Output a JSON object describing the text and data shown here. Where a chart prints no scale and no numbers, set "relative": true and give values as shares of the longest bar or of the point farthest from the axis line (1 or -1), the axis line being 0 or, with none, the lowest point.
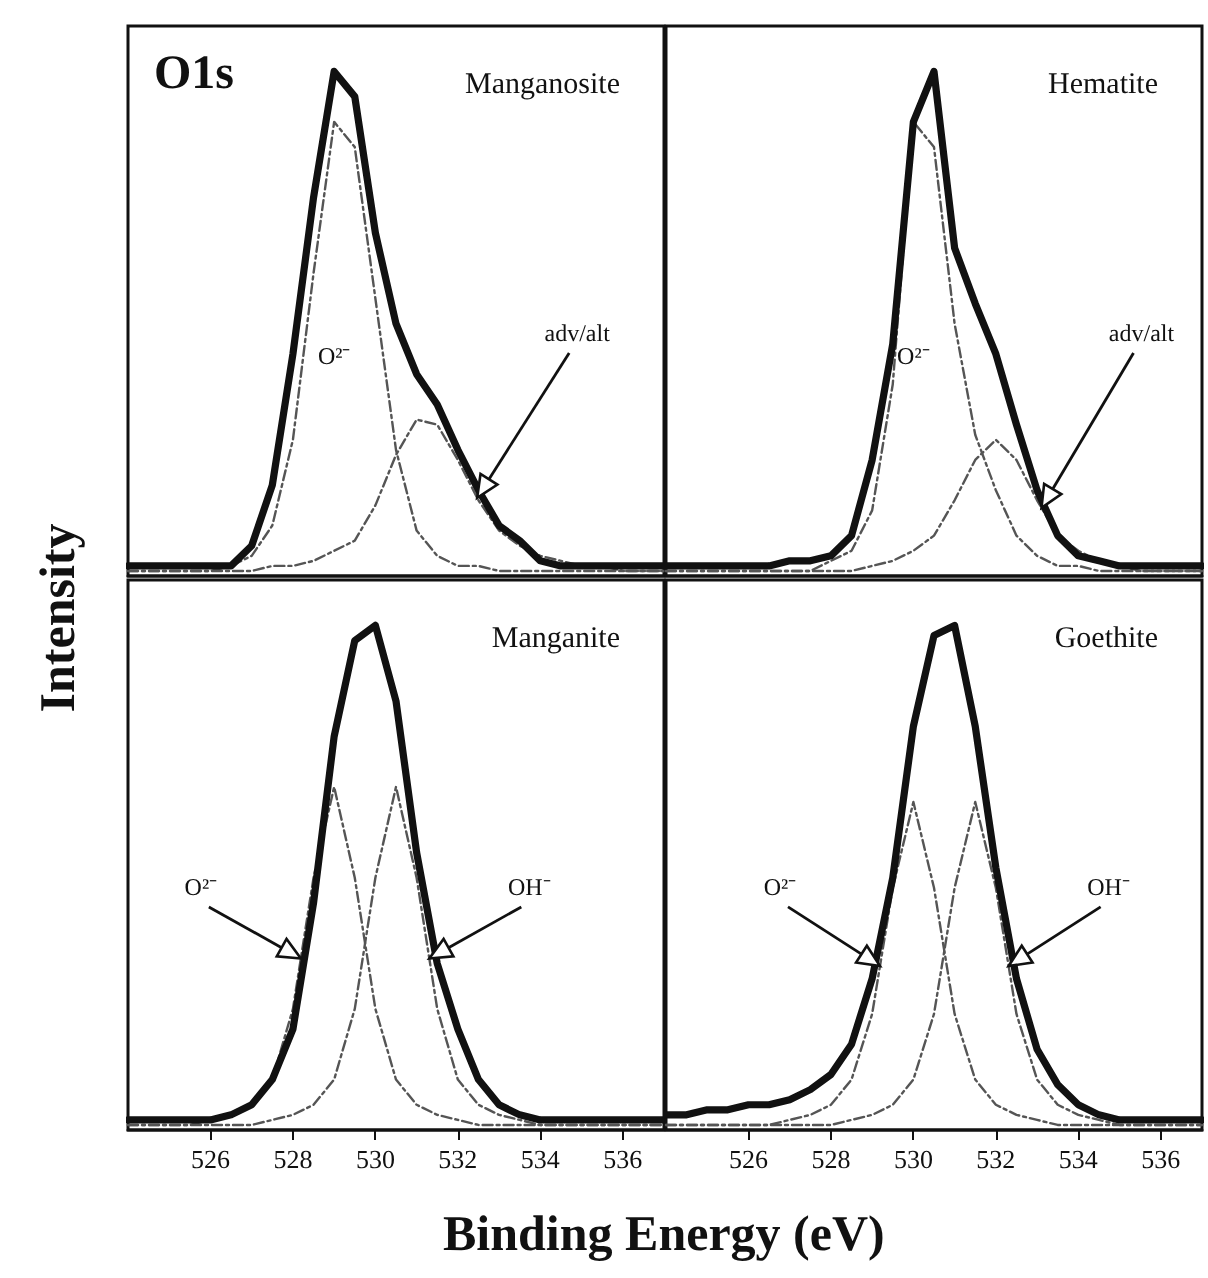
{
  "chart_data": [
    {
      "type": "line",
      "title": "Manganosite",
      "relative": true,
      "tick_labels": false,
      "x": [
        524,
        524.5,
        525,
        525.5,
        526,
        526.5,
        527,
        527.5,
        528,
        528.5,
        529,
        529.5,
        530,
        530.5,
        531,
        531.5,
        532,
        532.5,
        533,
        533.5,
        534,
        534.5,
        535,
        535.5,
        536,
        536.5,
        537
      ],
      "xlim": [
        524,
        537
      ],
      "xticks": [
        526,
        528,
        530,
        532,
        534,
        536
      ],
      "series": [
        {
          "color": "#111111",
          "line_style": "solid",
          "values": [
            0.02,
            0.02,
            0.02,
            0.02,
            0.02,
            0.02,
            0.06,
            0.18,
            0.44,
            0.75,
            1.0,
            0.95,
            0.68,
            0.5,
            0.4,
            0.34,
            0.25,
            0.17,
            0.1,
            0.07,
            0.03,
            0.02,
            0.02,
            0.02,
            0.02,
            0.02,
            0.02
          ]
        },
        {
          "color": "#555555",
          "line_style": "dashed",
          "values": [
            0.01,
            0.01,
            0.01,
            0.01,
            0.01,
            0.02,
            0.04,
            0.1,
            0.27,
            0.6,
            0.9,
            0.85,
            0.55,
            0.25,
            0.09,
            0.04,
            0.02,
            0.02,
            0.01,
            0.01,
            0.01,
            0.01,
            0.01,
            0.01,
            0.01,
            0.01,
            0.01
          ]
        },
        {
          "color": "#555555",
          "line_style": "dashed",
          "values": [
            0.01,
            0.01,
            0.01,
            0.01,
            0.01,
            0.01,
            0.01,
            0.02,
            0.02,
            0.03,
            0.05,
            0.07,
            0.14,
            0.24,
            0.31,
            0.3,
            0.23,
            0.15,
            0.09,
            0.06,
            0.04,
            0.03,
            0.02,
            0.02,
            0.01,
            0.01,
            0.01
          ]
        }
      ],
      "annotations": [
        "O1s",
        "O²⁻",
        "adv/alt"
      ]
    },
    {
      "type": "line",
      "title": "Hematite",
      "relative": true,
      "tick_labels": false,
      "x": [
        524,
        524.5,
        525,
        525.5,
        526,
        526.5,
        527,
        527.5,
        528,
        528.5,
        529,
        529.5,
        530,
        530.5,
        531,
        531.5,
        532,
        532.5,
        533,
        533.5,
        534,
        534.5,
        535,
        535.5,
        536,
        536.5,
        537
      ],
      "xlim": [
        524,
        537
      ],
      "xticks": [
        526,
        528,
        530,
        532,
        534,
        536
      ],
      "series": [
        {
          "color": "#111111",
          "line_style": "solid",
          "values": [
            0.02,
            0.02,
            0.02,
            0.02,
            0.02,
            0.02,
            0.03,
            0.03,
            0.04,
            0.08,
            0.23,
            0.46,
            0.9,
            1.0,
            0.65,
            0.54,
            0.44,
            0.3,
            0.17,
            0.08,
            0.04,
            0.03,
            0.02,
            0.02,
            0.02,
            0.02,
            0.02
          ]
        },
        {
          "color": "#555555",
          "line_style": "dashed",
          "values": [
            0.01,
            0.01,
            0.01,
            0.01,
            0.01,
            0.01,
            0.01,
            0.01,
            0.03,
            0.05,
            0.13,
            0.38,
            0.9,
            0.85,
            0.5,
            0.28,
            0.17,
            0.08,
            0.04,
            0.02,
            0.02,
            0.01,
            0.01,
            0.01,
            0.01,
            0.01,
            0.01
          ]
        },
        {
          "color": "#555555",
          "line_style": "dashed",
          "values": [
            0.01,
            0.01,
            0.01,
            0.01,
            0.01,
            0.01,
            0.01,
            0.01,
            0.01,
            0.01,
            0.02,
            0.03,
            0.05,
            0.08,
            0.15,
            0.23,
            0.27,
            0.23,
            0.15,
            0.08,
            0.05,
            0.03,
            0.02,
            0.01,
            0.01,
            0.01,
            0.01
          ]
        }
      ],
      "annotations": [
        "O²⁻",
        "adv/alt"
      ]
    },
    {
      "type": "line",
      "title": "Manganite",
      "relative": true,
      "tick_labels": "x",
      "xlabel": "Binding Energy (eV)",
      "ylabel": "Intensity",
      "x": [
        524,
        524.5,
        525,
        525.5,
        526,
        526.5,
        527,
        527.5,
        528,
        528.5,
        529,
        529.5,
        530,
        530.5,
        531,
        531.5,
        532,
        532.5,
        533,
        533.5,
        534,
        534.5,
        535,
        535.5,
        536,
        536.5,
        537
      ],
      "xlim": [
        524,
        537
      ],
      "xticks": [
        526,
        528,
        530,
        532,
        534,
        536
      ],
      "series": [
        {
          "color": "#111111",
          "line_style": "solid",
          "values": [
            0.02,
            0.02,
            0.02,
            0.02,
            0.02,
            0.03,
            0.05,
            0.1,
            0.2,
            0.45,
            0.78,
            0.97,
            1.0,
            0.85,
            0.55,
            0.33,
            0.2,
            0.1,
            0.05,
            0.03,
            0.02,
            0.02,
            0.02,
            0.02,
            0.02,
            0.02,
            0.02
          ]
        },
        {
          "color": "#555555",
          "line_style": "dashed",
          "values": [
            0.01,
            0.01,
            0.01,
            0.01,
            0.02,
            0.03,
            0.05,
            0.1,
            0.24,
            0.5,
            0.68,
            0.5,
            0.24,
            0.1,
            0.05,
            0.03,
            0.02,
            0.01,
            0.01,
            0.01,
            0.01,
            0.01,
            0.01,
            0.01,
            0.01,
            0.01,
            0.01
          ]
        },
        {
          "color": "#555555",
          "line_style": "dashed",
          "values": [
            0.01,
            0.01,
            0.01,
            0.01,
            0.01,
            0.01,
            0.01,
            0.02,
            0.03,
            0.05,
            0.1,
            0.24,
            0.5,
            0.68,
            0.5,
            0.24,
            0.1,
            0.05,
            0.03,
            0.02,
            0.01,
            0.01,
            0.01,
            0.01,
            0.01,
            0.01,
            0.01
          ]
        }
      ],
      "annotations": [
        "O²⁻",
        "OH⁻"
      ]
    },
    {
      "type": "line",
      "title": "Goethite",
      "relative": true,
      "tick_labels": "x",
      "x": [
        524,
        524.5,
        525,
        525.5,
        526,
        526.5,
        527,
        527.5,
        528,
        528.5,
        529,
        529.5,
        530,
        530.5,
        531,
        531.5,
        532,
        532.5,
        533,
        533.5,
        534,
        534.5,
        535,
        535.5,
        536,
        536.5,
        537
      ],
      "xlim": [
        524,
        537
      ],
      "xticks": [
        526,
        528,
        530,
        532,
        534,
        536
      ],
      "series": [
        {
          "color": "#111111",
          "line_style": "solid",
          "values": [
            0.03,
            0.03,
            0.04,
            0.04,
            0.05,
            0.05,
            0.06,
            0.08,
            0.11,
            0.17,
            0.3,
            0.5,
            0.8,
            0.98,
            1.0,
            0.8,
            0.52,
            0.3,
            0.16,
            0.09,
            0.05,
            0.03,
            0.02,
            0.02,
            0.02,
            0.02,
            0.02
          ]
        },
        {
          "color": "#555555",
          "line_style": "dashed",
          "values": [
            0.01,
            0.01,
            0.01,
            0.01,
            0.01,
            0.01,
            0.02,
            0.03,
            0.05,
            0.1,
            0.23,
            0.48,
            0.65,
            0.48,
            0.23,
            0.1,
            0.05,
            0.03,
            0.02,
            0.01,
            0.01,
            0.01,
            0.01,
            0.01,
            0.01,
            0.01,
            0.01
          ]
        },
        {
          "color": "#555555",
          "line_style": "dashed",
          "values": [
            0.01,
            0.01,
            0.01,
            0.01,
            0.01,
            0.01,
            0.01,
            0.01,
            0.01,
            0.02,
            0.03,
            0.05,
            0.1,
            0.23,
            0.48,
            0.65,
            0.48,
            0.23,
            0.1,
            0.05,
            0.03,
            0.02,
            0.01,
            0.01,
            0.01,
            0.01,
            0.01
          ]
        }
      ],
      "annotations": [
        "O²⁻",
        "OH⁻"
      ]
    }
  ]
}
